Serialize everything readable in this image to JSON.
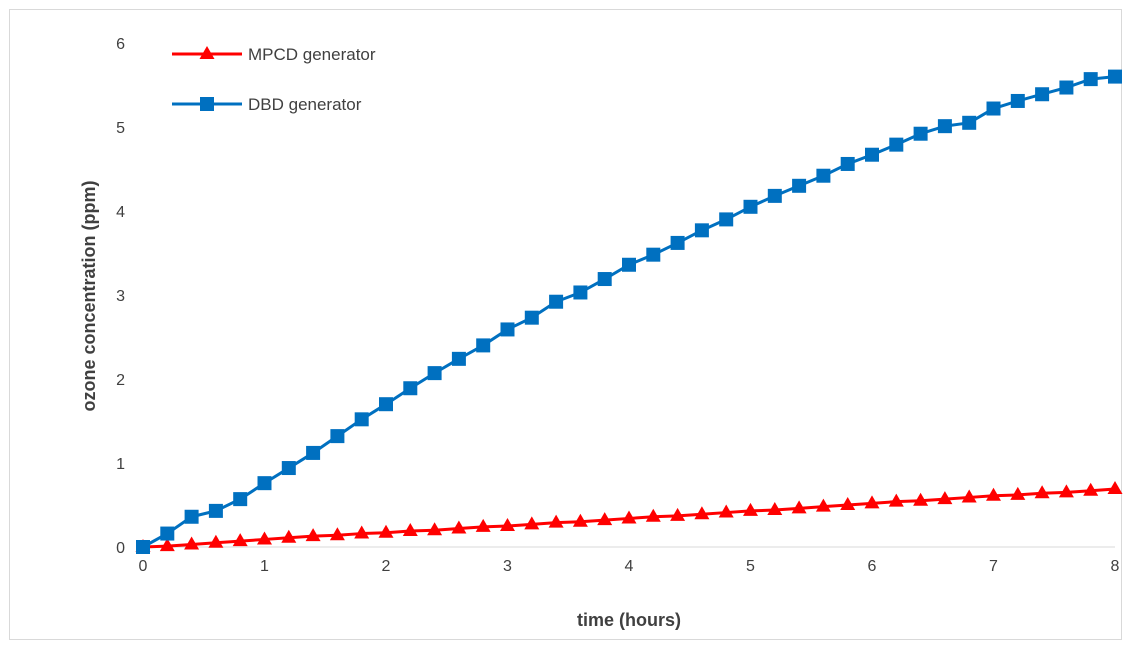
{
  "chart_data": {
    "type": "line",
    "title": "",
    "xlabel": "time (hours)",
    "ylabel": "ozone concentration (ppm)",
    "xlim": [
      0,
      8
    ],
    "ylim": [
      0,
      6
    ],
    "x_ticks": [
      "0",
      "1",
      "2",
      "3",
      "4",
      "5",
      "6",
      "7",
      "8"
    ],
    "y_ticks": [
      "0",
      "1",
      "2",
      "3",
      "4",
      "5",
      "6"
    ],
    "grid": false,
    "legend_position": "top-left",
    "x": [
      0,
      0.2,
      0.4,
      0.6,
      0.8,
      1.0,
      1.2,
      1.4,
      1.6,
      1.8,
      2.0,
      2.2,
      2.4,
      2.6,
      2.8,
      3.0,
      3.2,
      3.4,
      3.6,
      3.8,
      4.0,
      4.2,
      4.4,
      4.6,
      4.8,
      5.0,
      5.2,
      5.4,
      5.6,
      5.8,
      6.0,
      6.2,
      6.4,
      6.6,
      6.8,
      7.0,
      7.2,
      7.4,
      7.6,
      7.8,
      8.0
    ],
    "series": [
      {
        "name": "MPCD generator",
        "color": "#ff0000",
        "marker": "triangle",
        "values": [
          0,
          0.01,
          0.03,
          0.05,
          0.07,
          0.09,
          0.11,
          0.13,
          0.14,
          0.16,
          0.17,
          0.19,
          0.2,
          0.22,
          0.24,
          0.25,
          0.27,
          0.29,
          0.3,
          0.32,
          0.34,
          0.36,
          0.37,
          0.39,
          0.41,
          0.43,
          0.44,
          0.46,
          0.48,
          0.5,
          0.52,
          0.54,
          0.55,
          0.57,
          0.59,
          0.61,
          0.62,
          0.64,
          0.65,
          0.67,
          0.69
        ]
      },
      {
        "name": "DBD generator",
        "color": "#0070c0",
        "marker": "square",
        "values": [
          0,
          0.16,
          0.36,
          0.43,
          0.57,
          0.76,
          0.94,
          1.12,
          1.32,
          1.52,
          1.7,
          1.89,
          2.07,
          2.24,
          2.4,
          2.59,
          2.73,
          2.92,
          3.03,
          3.19,
          3.36,
          3.48,
          3.62,
          3.77,
          3.9,
          4.05,
          4.18,
          4.3,
          4.42,
          4.56,
          4.67,
          4.79,
          4.92,
          5.01,
          5.05,
          5.22,
          5.31,
          5.39,
          5.47,
          5.57,
          5.6
        ]
      }
    ]
  }
}
